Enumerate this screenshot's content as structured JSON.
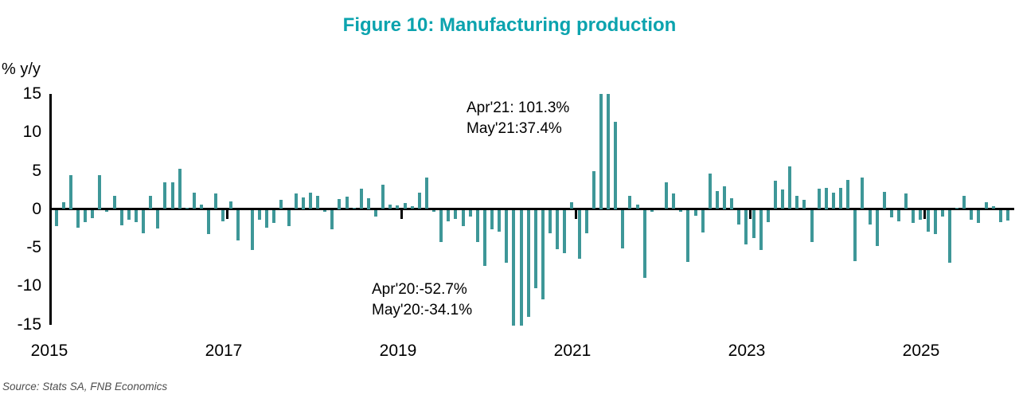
{
  "title": "Figure 10: Manufacturing production",
  "y_axis": {
    "label": "% y/y",
    "ticks": [
      "15",
      "10",
      "5",
      "0",
      "-5",
      "-10",
      "-15"
    ]
  },
  "x_axis": {
    "labels": [
      "2015",
      "2017",
      "2019",
      "2021",
      "2023",
      "2025"
    ]
  },
  "annotations": {
    "peak_line1": "Apr'21: 101.3%",
    "peak_line2": "May'21:37.4%",
    "trough_line1": "Apr'20:-52.7%",
    "trough_line2": "May'20:-34.1%"
  },
  "source": "Source: Stats SA, FNB Economics",
  "colors": {
    "bar": "#3E9798",
    "title": "#0BA3AE",
    "axis": "#000000",
    "source_text": "#4D4D4D"
  },
  "chart_data": {
    "type": "bar",
    "title": "Figure 10: Manufacturing production",
    "xlabel": "",
    "ylabel": "% y/y",
    "ylim": [
      -15,
      15
    ],
    "y_ticks": [
      15,
      10,
      5,
      0,
      -5,
      -10,
      -15
    ],
    "x_tick_labels": [
      "2015",
      "2017",
      "2019",
      "2021",
      "2023",
      "2025"
    ],
    "grid": false,
    "legend": false,
    "clipped_values_note": "Bars beyond +/-15 are clipped at plot edge and labelled by annotations",
    "clipped_points": [
      {
        "month": "Apr'20",
        "value": -52.7
      },
      {
        "month": "May'20",
        "value": -34.1
      },
      {
        "month": "Apr'21",
        "value": 101.3
      },
      {
        "month": "May'21",
        "value": 37.4
      }
    ],
    "x": [
      "Jan'15",
      "Feb'15",
      "Mar'15",
      "Apr'15",
      "May'15",
      "Jun'15",
      "Jul'15",
      "Aug'15",
      "Sep'15",
      "Oct'15",
      "Nov'15",
      "Dec'15",
      "Jan'16",
      "Feb'16",
      "Mar'16",
      "Apr'16",
      "May'16",
      "Jun'16",
      "Jul'16",
      "Aug'16",
      "Sep'16",
      "Oct'16",
      "Nov'16",
      "Dec'16",
      "Jan'17",
      "Feb'17",
      "Mar'17",
      "Apr'17",
      "May'17",
      "Jun'17",
      "Jul'17",
      "Aug'17",
      "Sep'17",
      "Oct'17",
      "Nov'17",
      "Dec'17",
      "Jan'18",
      "Feb'18",
      "Mar'18",
      "Apr'18",
      "May'18",
      "Jun'18",
      "Jul'18",
      "Aug'18",
      "Sep'18",
      "Oct'18",
      "Nov'18",
      "Dec'18",
      "Jan'19",
      "Feb'19",
      "Mar'19",
      "Apr'19",
      "May'19",
      "Jun'19",
      "Jul'19",
      "Aug'19",
      "Sep'19",
      "Oct'19",
      "Nov'19",
      "Dec'19",
      "Jan'20",
      "Feb'20",
      "Mar'20",
      "Apr'20",
      "May'20",
      "Jun'20",
      "Jul'20",
      "Aug'20",
      "Sep'20",
      "Oct'20",
      "Nov'20",
      "Dec'20",
      "Jan'21",
      "Feb'21",
      "Mar'21",
      "Apr'21",
      "May'21",
      "Jun'21",
      "Jul'21",
      "Aug'21",
      "Sep'21",
      "Oct'21",
      "Nov'21",
      "Dec'21",
      "Jan'22",
      "Feb'22",
      "Mar'22",
      "Apr'22",
      "May'22",
      "Jun'22",
      "Jul'22",
      "Aug'22",
      "Sep'22",
      "Oct'22",
      "Nov'22",
      "Dec'22",
      "Jan'23",
      "Feb'23",
      "Mar'23",
      "Apr'23",
      "May'23",
      "Jun'23",
      "Jul'23",
      "Aug'23",
      "Sep'23",
      "Oct'23",
      "Nov'23",
      "Dec'23",
      "Jan'24",
      "Feb'24",
      "Mar'24",
      "Apr'24",
      "May'24",
      "Jun'24",
      "Jul'24",
      "Aug'24",
      "Sep'24",
      "Oct'24",
      "Nov'24",
      "Dec'24",
      "Jan'25",
      "Feb'25",
      "Mar'25",
      "Apr'25",
      "May'25",
      "Jun'25",
      "Jul'25",
      "Aug'25",
      "Sep'25",
      "Oct'25",
      "Nov'25",
      "Dec'25"
    ],
    "values": [
      -2.1,
      0.9,
      4.4,
      -2.3,
      -1.5,
      -1.0,
      4.4,
      -0.2,
      1.7,
      -2.0,
      -1.2,
      -1.5,
      -3.0,
      1.7,
      -2.4,
      3.5,
      3.5,
      5.2,
      0.2,
      2.1,
      0.6,
      -3.1,
      2.0,
      -1.4,
      1.0,
      -3.9,
      0.0,
      -5.2,
      -1.2,
      -2.3,
      -1.7,
      1.2,
      -2.1,
      2.0,
      1.5,
      2.1,
      1.7,
      -0.2,
      -2.5,
      1.3,
      1.6,
      0.2,
      2.6,
      1.4,
      -0.8,
      3.2,
      0.6,
      0.5,
      0.8,
      0.4,
      2.1,
      4.1,
      -0.2,
      -4.1,
      -1.4,
      -1.1,
      -2.1,
      -0.8,
      -4.1,
      -7.2,
      -2.5,
      -2.8,
      -6.8,
      -52.7,
      -34.1,
      -13.9,
      -10.2,
      -11.6,
      -3.0,
      -5.1,
      -5.6,
      0.9,
      -6.3,
      -3.0,
      4.9,
      101.3,
      37.4,
      11.4,
      -5.0,
      1.7,
      0.6,
      -8.8,
      -0.2,
      0.0,
      3.5,
      2.0,
      -0.2,
      -6.7,
      -0.7,
      -2.9,
      4.6,
      2.3,
      3.0,
      1.4,
      -1.9,
      -4.5,
      -3.6,
      -5.2,
      -1.5,
      3.7,
      2.5,
      5.5,
      1.7,
      1.2,
      -4.1,
      2.6,
      2.8,
      2.1,
      2.7,
      3.8,
      -6.6,
      4.1,
      -1.9,
      -4.7,
      2.2,
      -0.9,
      -1.4,
      2.0,
      -1.7,
      -1.2,
      -2.8,
      -3.1,
      -0.8,
      -6.8,
      0.2,
      1.7,
      -1.2,
      -1.7,
      0.9,
      0.4,
      -1.5,
      -1.3
    ]
  }
}
